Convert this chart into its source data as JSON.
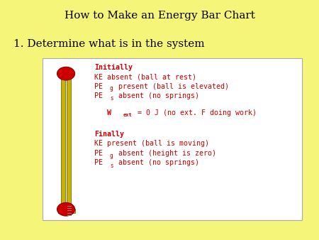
{
  "title": "How to Make an Energy Bar Chart",
  "subtitle": "1. Determine what is in the system",
  "bg_color": "#f5f57a",
  "box_bg": "#ffffff",
  "text_color": "#cc0000",
  "title_color": "#000000",
  "subtitle_color": "#000000",
  "initially_label": "Initially",
  "initially_lines": [
    "KE absent (ball at rest)",
    "PEg present (ball is elevated)",
    "PEs absent (no springs)"
  ],
  "wext_line": "Wext = 0 J (no ext. F doing work)",
  "finally_label": "Finally",
  "finally_lines": [
    "KE present (ball is moving)",
    "PEg absent (height is zero)",
    "PEs absent (no springs)"
  ]
}
